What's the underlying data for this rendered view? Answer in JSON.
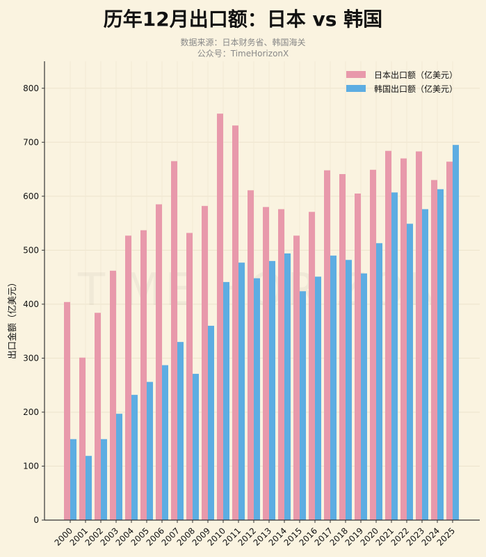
{
  "chart_data": {
    "type": "bar",
    "title": "历年12月出口额：日本 vs 韩国",
    "subtitle": [
      "数据来源：日本财务省、韩国海关",
      "公众号：TimeHorizonX"
    ],
    "watermark": "TIME HORIZON",
    "xlabel": "",
    "ylabel": "出口金额（亿美元）",
    "ylim": [
      0,
      850
    ],
    "yticks": [
      0,
      100,
      200,
      300,
      400,
      500,
      600,
      700,
      800
    ],
    "grid": true,
    "legend_position": "top-right",
    "categories": [
      "2000",
      "2001",
      "2002",
      "2003",
      "2004",
      "2005",
      "2006",
      "2007",
      "2008",
      "2009",
      "2010",
      "2011",
      "2012",
      "2013",
      "2014",
      "2015",
      "2016",
      "2017",
      "2018",
      "2019",
      "2020",
      "2021",
      "2022",
      "2023",
      "2024",
      "2025"
    ],
    "series": [
      {
        "name": "日本出口额（亿美元）",
        "color": "#e899ab",
        "values": [
          404,
          301,
          384,
          462,
          527,
          537,
          585,
          665,
          532,
          582,
          753,
          731,
          611,
          580,
          576,
          527,
          571,
          648,
          641,
          605,
          649,
          684,
          670,
          683,
          630,
          664
        ]
      },
      {
        "name": "韩国出口额（亿美元）",
        "color": "#5dade2",
        "values": [
          150,
          119,
          150,
          197,
          232,
          256,
          287,
          330,
          271,
          360,
          441,
          477,
          448,
          480,
          494,
          424,
          451,
          490,
          482,
          457,
          513,
          607,
          549,
          576,
          613,
          695
        ]
      }
    ]
  }
}
